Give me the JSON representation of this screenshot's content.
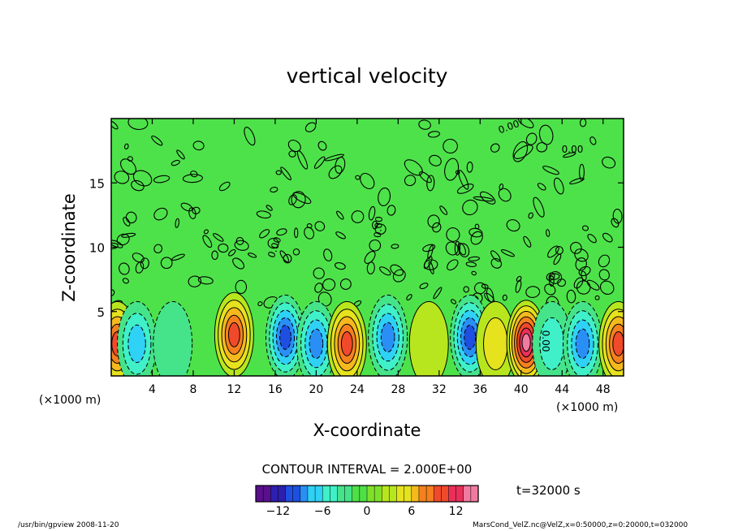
{
  "chart_data": {
    "type": "heatmap",
    "title": "vertical velocity",
    "xlabel": "X-coordinate",
    "ylabel": "Z-coordinate",
    "x_unit_left": "(×1000 m)",
    "x_unit_right": "(×1000 m)",
    "xlim": [
      0,
      50
    ],
    "ylim": [
      0,
      20
    ],
    "x_ticks": [
      4,
      8,
      12,
      16,
      20,
      24,
      28,
      32,
      36,
      40,
      44,
      48
    ],
    "y_ticks": [
      5,
      10,
      15
    ],
    "contour_interval_text": "CONTOUR INTERVAL = 2.000E+00",
    "time_label": "t=32000 s",
    "colorbar": {
      "ticks": [
        -12,
        -6,
        0,
        6,
        12
      ],
      "vmin": -15,
      "vmax": 15,
      "colors": [
        "#5a0f8c",
        "#2d1fb0",
        "#1f4fe0",
        "#2a8ff5",
        "#2fd1f5",
        "#3ff0c8",
        "#45e38a",
        "#4fe046",
        "#7fe02a",
        "#b8e61e",
        "#e6e21e",
        "#f5b91e",
        "#f5801e",
        "#f04a2a",
        "#e8305a",
        "#f07aa0"
      ]
    },
    "contour_labels": [
      "0.00",
      "0.00",
      "0.00",
      "0.00",
      "0.00"
    ],
    "features": [
      {
        "x": 0.6,
        "z": 2.5,
        "value": 9
      },
      {
        "x": 2.5,
        "z": 2.5,
        "value": -6
      },
      {
        "x": 6,
        "z": 2.5,
        "value": -2
      },
      {
        "x": 12,
        "z": 3.2,
        "value": 10
      },
      {
        "x": 17,
        "z": 3,
        "value": -9
      },
      {
        "x": 20,
        "z": 2.5,
        "value": -7
      },
      {
        "x": 23,
        "z": 2.5,
        "value": 10
      },
      {
        "x": 27,
        "z": 3,
        "value": -7
      },
      {
        "x": 31,
        "z": 2.5,
        "value": 2
      },
      {
        "x": 35,
        "z": 3,
        "value": -10
      },
      {
        "x": 37.5,
        "z": 2.5,
        "value": 3
      },
      {
        "x": 40.5,
        "z": 2.6,
        "value": 14
      },
      {
        "x": 43,
        "z": 2.5,
        "value": -3
      },
      {
        "x": 46,
        "z": 2.5,
        "value": -8
      },
      {
        "x": 49.5,
        "z": 2.5,
        "value": 9
      }
    ]
  },
  "footer": {
    "left": "/usr/bin/gpview   2008-11-20",
    "right": "MarsCond_VelZ.nc@VelZ,x=0:50000,z=0:20000,t=032000"
  }
}
